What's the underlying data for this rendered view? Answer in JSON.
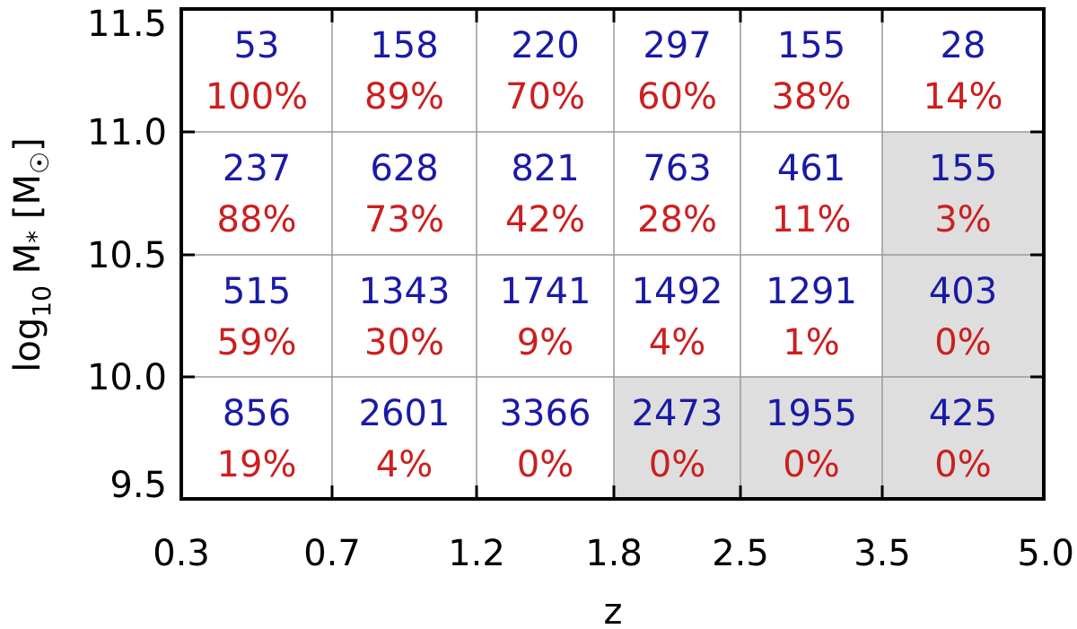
{
  "chart_data": {
    "type": "table",
    "xlabel": "z",
    "ylabel": "log₁₀ M* [M☉]",
    "x_edges": [
      "0.3",
      "0.7",
      "1.2",
      "1.8",
      "2.5",
      "3.5",
      "5.0"
    ],
    "y_edges": [
      "9.5",
      "10.0",
      "10.5",
      "11.0",
      "11.5"
    ],
    "rows": [
      {
        "mass_bin": "11.0–11.5",
        "counts": [
          "53",
          "158",
          "220",
          "297",
          "155",
          "28"
        ],
        "fractions": [
          "100%",
          "89%",
          "70%",
          "60%",
          "38%",
          "14%"
        ],
        "shaded": [
          false,
          false,
          false,
          false,
          false,
          false
        ]
      },
      {
        "mass_bin": "10.5–11.0",
        "counts": [
          "237",
          "628",
          "821",
          "763",
          "461",
          "155"
        ],
        "fractions": [
          "88%",
          "73%",
          "42%",
          "28%",
          "11%",
          "3%"
        ],
        "shaded": [
          false,
          false,
          false,
          false,
          false,
          true
        ]
      },
      {
        "mass_bin": "10.0–10.5",
        "counts": [
          "515",
          "1343",
          "1741",
          "1492",
          "1291",
          "403"
        ],
        "fractions": [
          "59%",
          "30%",
          "9%",
          "4%",
          "1%",
          "0%"
        ],
        "shaded": [
          false,
          false,
          false,
          false,
          false,
          true
        ]
      },
      {
        "mass_bin": "9.5–10.0",
        "counts": [
          "856",
          "2601",
          "3366",
          "2473",
          "1955",
          "425"
        ],
        "fractions": [
          "19%",
          "4%",
          "0%",
          "0%",
          "0%",
          "0%"
        ],
        "shaded": [
          false,
          false,
          false,
          true,
          true,
          true
        ]
      }
    ],
    "colors": {
      "count": "#1a1aa6",
      "fraction": "#cc1f1f",
      "shade": "#dedede",
      "grid": "#9a9a9a",
      "frame": "#000000"
    },
    "grid": true
  }
}
